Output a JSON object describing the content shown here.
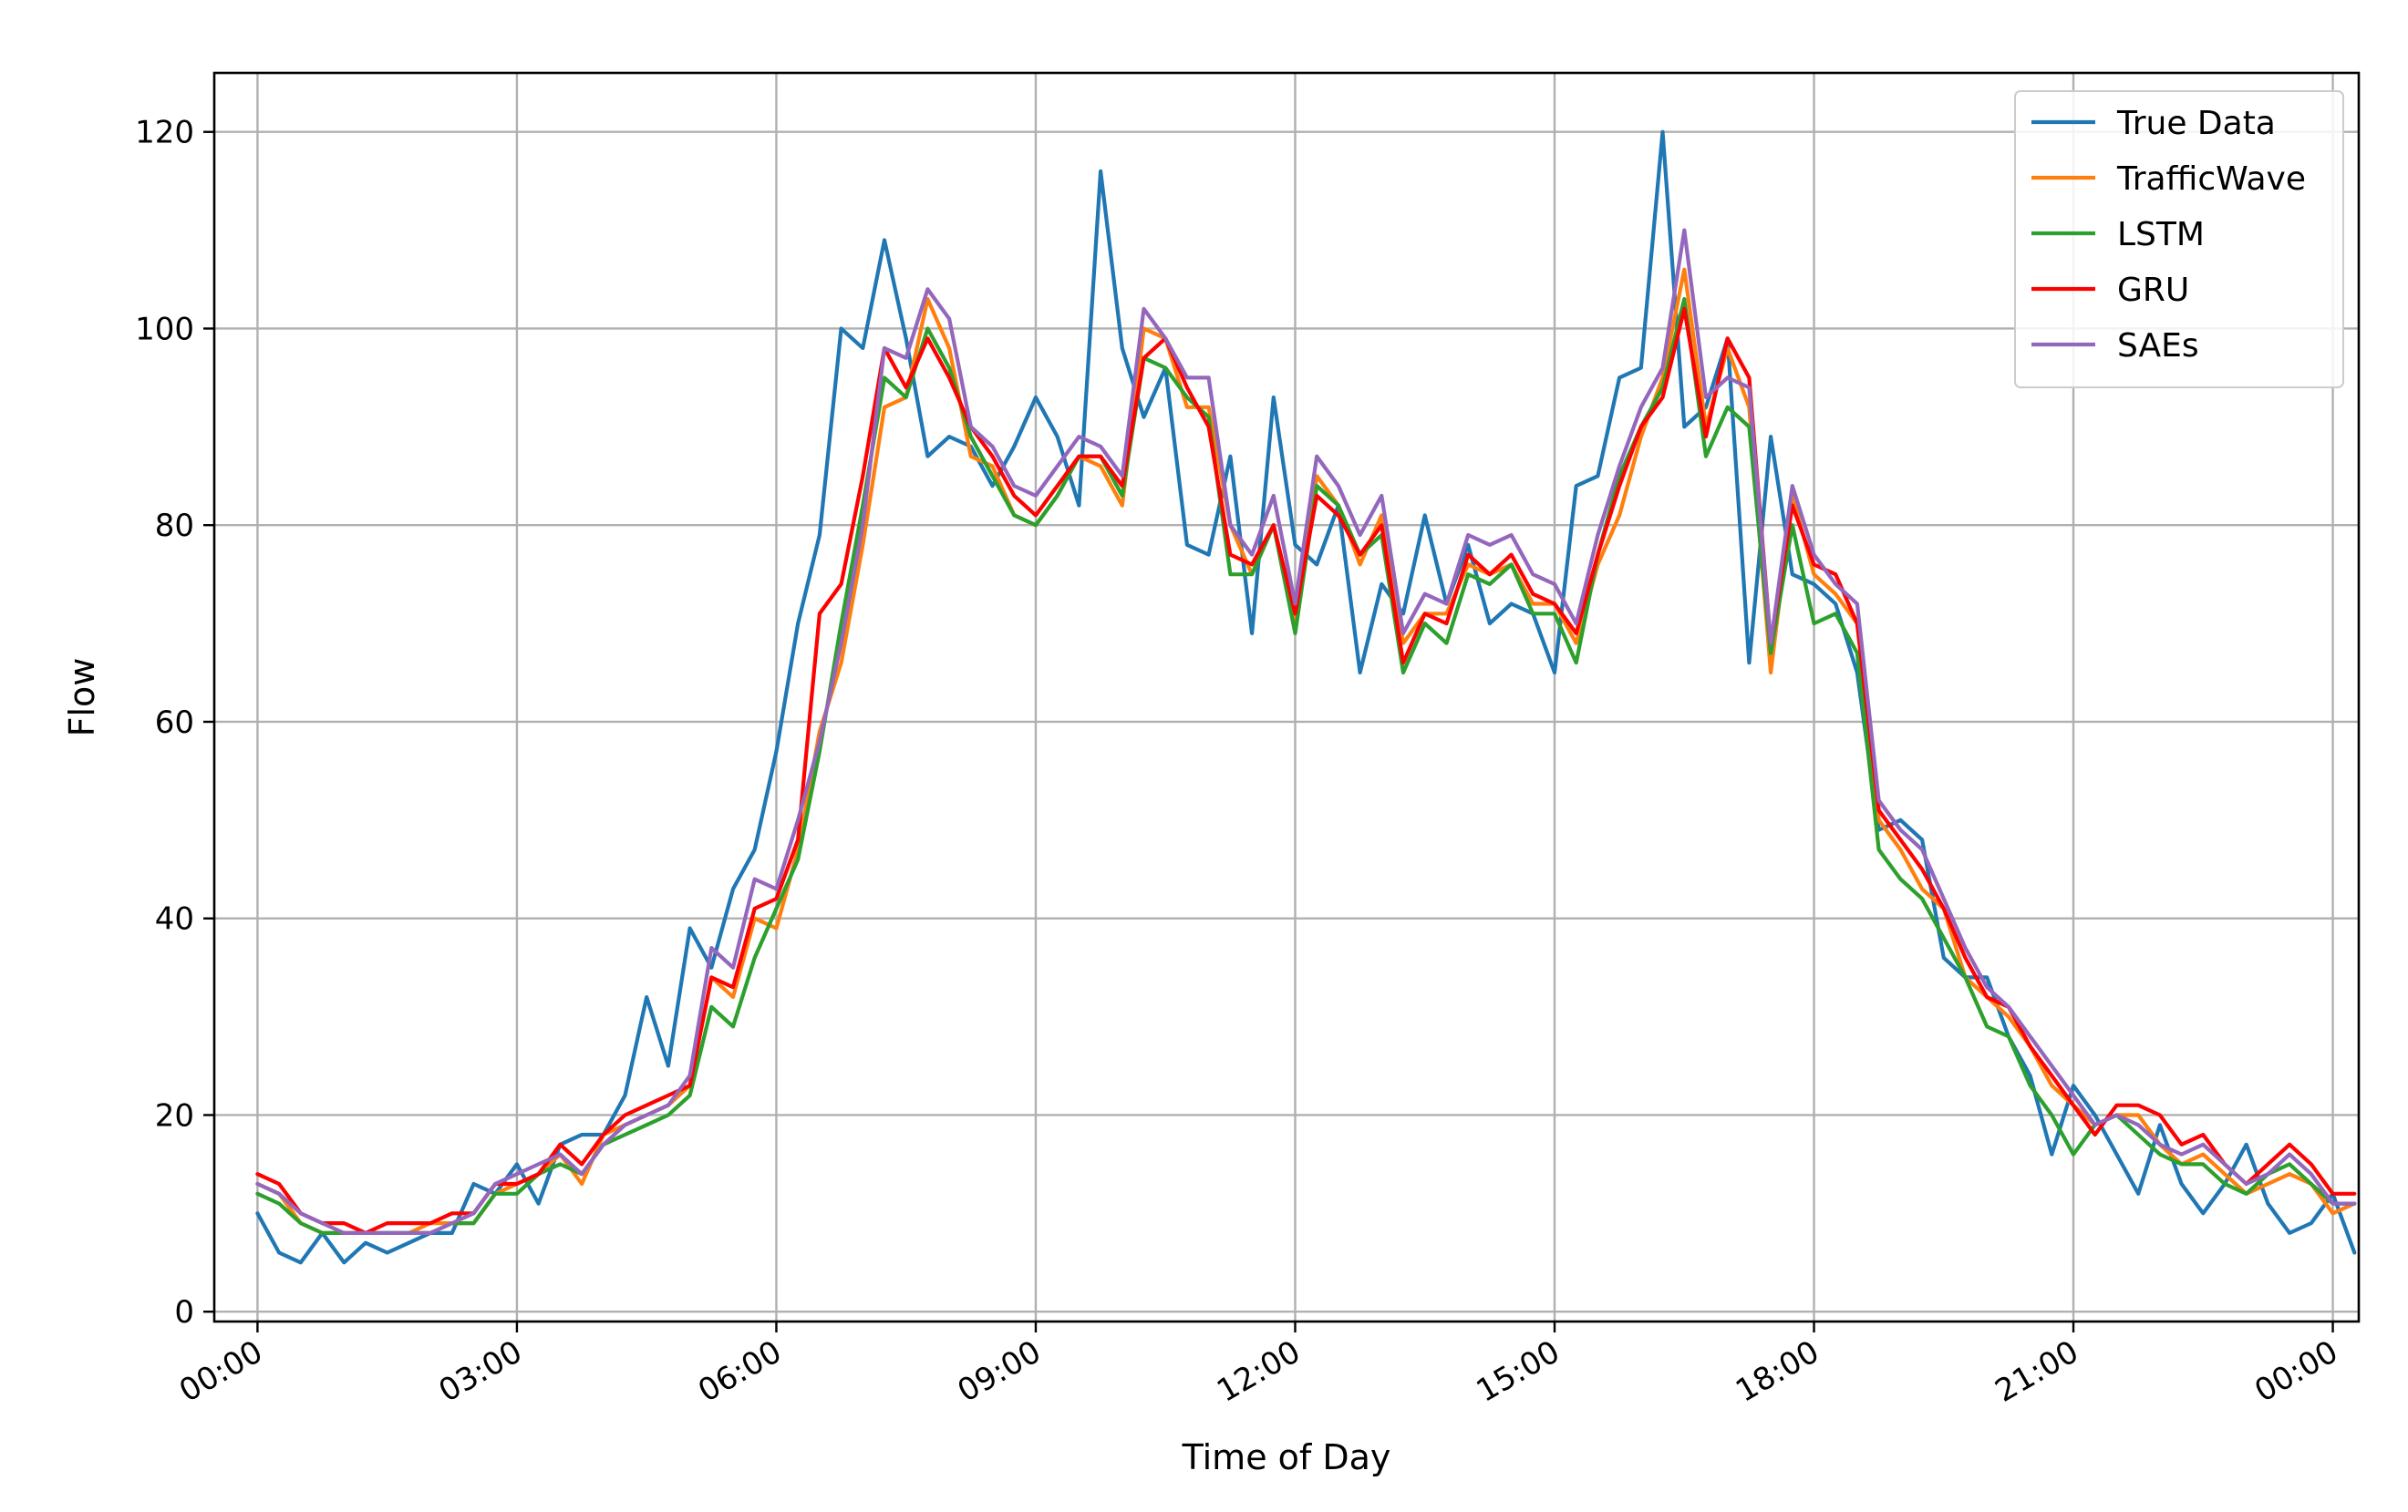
{
  "chart_data": {
    "type": "line",
    "title": "",
    "xlabel": "Time of Day",
    "ylabel": "Flow",
    "xlim": [
      -0.5,
      24.3
    ],
    "ylim": [
      -1,
      126
    ],
    "grid": true,
    "legend_position": "top-right",
    "x_ticks": [
      {
        "value": 0,
        "label": "00:00"
      },
      {
        "value": 3,
        "label": "03:00"
      },
      {
        "value": 6,
        "label": "06:00"
      },
      {
        "value": 9,
        "label": "09:00"
      },
      {
        "value": 12,
        "label": "12:00"
      },
      {
        "value": 15,
        "label": "15:00"
      },
      {
        "value": 18,
        "label": "18:00"
      },
      {
        "value": 21,
        "label": "21:00"
      },
      {
        "value": 24,
        "label": "00:00"
      }
    ],
    "y_ticks": [
      {
        "value": 0,
        "label": "0"
      },
      {
        "value": 20,
        "label": "20"
      },
      {
        "value": 40,
        "label": "40"
      },
      {
        "value": 60,
        "label": "60"
      },
      {
        "value": 80,
        "label": "80"
      },
      {
        "value": 100,
        "label": "100"
      },
      {
        "value": 120,
        "label": "120"
      }
    ],
    "x_interval_hours": 0.25,
    "series": [
      {
        "name": "True Data",
        "color": "#1f77b4",
        "values": [
          10,
          6,
          5,
          8,
          5,
          7,
          6,
          7,
          8,
          8,
          13,
          12,
          15,
          11,
          17,
          18,
          18,
          22,
          32,
          25,
          39,
          35,
          43,
          47,
          57,
          70,
          79,
          100,
          98,
          109,
          99,
          87,
          89,
          88,
          84,
          88,
          93,
          89,
          82,
          116,
          98,
          91,
          96,
          78,
          77,
          87,
          69,
          93,
          78,
          76,
          82,
          65,
          74,
          71,
          81,
          72,
          78,
          70,
          72,
          71,
          65,
          84,
          85,
          95,
          96,
          120,
          90,
          92,
          99,
          66,
          89,
          75,
          74,
          72,
          65,
          49,
          50,
          48,
          36,
          34,
          34,
          28,
          24,
          16,
          23,
          20,
          16,
          12,
          19,
          13,
          10,
          13,
          17,
          11,
          8,
          9,
          12,
          6
        ]
      },
      {
        "name": "TrafficWave",
        "color": "#ff7f0e",
        "values": [
          13,
          12,
          9,
          8,
          8,
          8,
          8,
          8,
          9,
          9,
          9,
          12,
          13,
          14,
          16,
          13,
          18,
          19,
          20,
          21,
          23,
          34,
          32,
          40,
          39,
          47,
          59,
          66,
          78,
          92,
          93,
          103,
          98,
          87,
          86,
          81,
          80,
          83,
          87,
          86,
          82,
          100,
          99,
          92,
          92,
          80,
          75,
          80,
          70,
          85,
          82,
          76,
          81,
          68,
          71,
          71,
          76,
          75,
          76,
          72,
          72,
          68,
          76,
          81,
          89,
          95,
          106,
          90,
          98,
          92,
          65,
          83,
          75,
          73,
          70,
          50,
          47,
          43,
          41,
          34,
          32,
          30,
          27,
          23,
          21,
          19,
          20,
          20,
          17,
          15,
          16,
          14,
          12,
          13,
          14,
          13,
          10,
          11
        ]
      },
      {
        "name": "LSTM",
        "color": "#2ca02c",
        "values": [
          12,
          11,
          9,
          8,
          8,
          8,
          8,
          8,
          8,
          9,
          9,
          12,
          12,
          14,
          15,
          14,
          17,
          18,
          19,
          20,
          22,
          31,
          29,
          36,
          41,
          46,
          57,
          70,
          82,
          95,
          93,
          100,
          96,
          89,
          85,
          81,
          80,
          83,
          87,
          87,
          83,
          97,
          96,
          93,
          91,
          75,
          75,
          80,
          69,
          84,
          82,
          77,
          79,
          65,
          70,
          68,
          75,
          74,
          76,
          71,
          71,
          66,
          77,
          85,
          90,
          94,
          103,
          87,
          92,
          90,
          67,
          80,
          70,
          71,
          67,
          47,
          44,
          42,
          38,
          34,
          29,
          28,
          23,
          20,
          16,
          19,
          20,
          18,
          16,
          15,
          15,
          13,
          12,
          14,
          15,
          13,
          11,
          11
        ]
      },
      {
        "name": "GRU",
        "color": "#ff0000",
        "values": [
          14,
          13,
          10,
          9,
          9,
          8,
          9,
          9,
          9,
          10,
          10,
          13,
          13,
          14,
          17,
          15,
          18,
          20,
          21,
          22,
          23,
          34,
          33,
          41,
          42,
          48,
          71,
          74,
          85,
          98,
          94,
          99,
          95,
          90,
          87,
          83,
          81,
          84,
          87,
          87,
          84,
          97,
          99,
          94,
          90,
          77,
          76,
          80,
          71,
          83,
          81,
          77,
          80,
          66,
          71,
          70,
          77,
          75,
          77,
          73,
          72,
          69,
          77,
          84,
          90,
          93,
          102,
          89,
          99,
          95,
          68,
          82,
          76,
          75,
          70,
          51,
          48,
          45,
          41,
          36,
          32,
          31,
          27,
          24,
          21,
          18,
          21,
          21,
          20,
          17,
          18,
          15,
          13,
          15,
          17,
          15,
          12,
          12
        ]
      },
      {
        "name": "SAEs",
        "color": "#9467bd",
        "values": [
          13,
          12,
          10,
          9,
          8,
          8,
          8,
          8,
          8,
          9,
          10,
          13,
          14,
          15,
          16,
          14,
          17,
          19,
          20,
          21,
          24,
          37,
          35,
          44,
          43,
          50,
          58,
          68,
          80,
          98,
          97,
          104,
          101,
          90,
          88,
          84,
          83,
          86,
          89,
          88,
          85,
          102,
          99,
          95,
          95,
          80,
          77,
          83,
          72,
          87,
          84,
          79,
          83,
          69,
          73,
          72,
          79,
          78,
          79,
          75,
          74,
          70,
          79,
          86,
          92,
          96,
          110,
          93,
          95,
          94,
          68,
          84,
          77,
          74,
          72,
          52,
          49,
          47,
          42,
          37,
          33,
          31,
          28,
          25,
          22,
          19,
          20,
          19,
          17,
          16,
          17,
          15,
          13,
          14,
          16,
          14,
          11,
          11
        ]
      }
    ]
  }
}
